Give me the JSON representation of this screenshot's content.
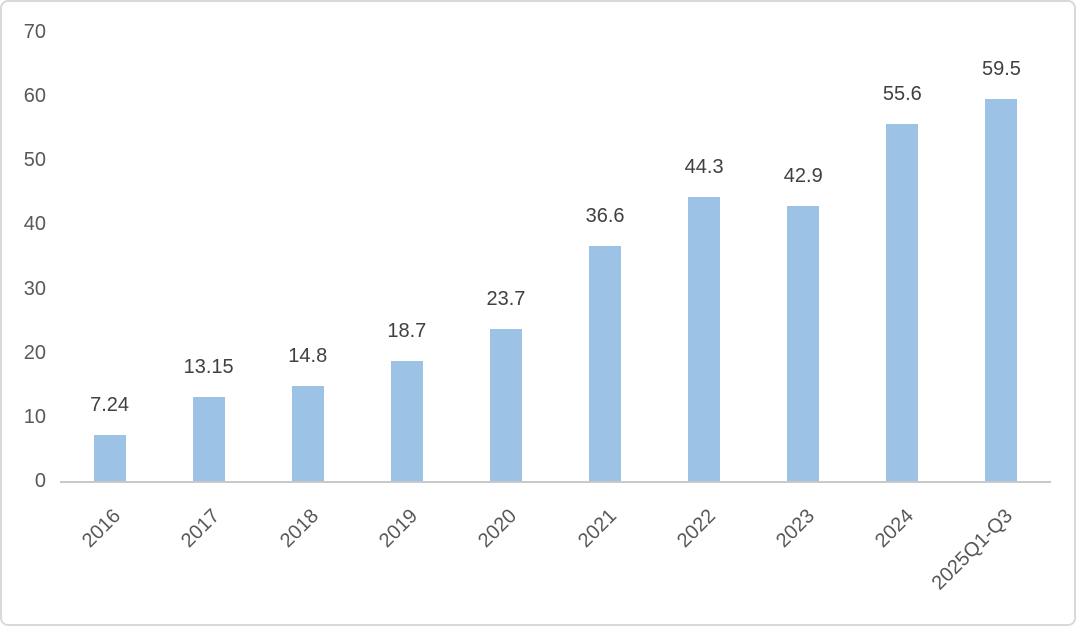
{
  "chart_data": {
    "type": "bar",
    "title": "",
    "xlabel": "",
    "ylabel": "",
    "categories": [
      "2016",
      "2017",
      "2018",
      "2019",
      "2020",
      "2021",
      "2022",
      "2023",
      "2024",
      "2025Q1-Q3"
    ],
    "values": [
      7.24,
      13.15,
      14.8,
      18.7,
      23.7,
      36.6,
      44.3,
      42.9,
      55.6,
      59.5
    ],
    "data_labels": [
      "7.24",
      "13.15",
      "14.8",
      "18.7",
      "23.7",
      "36.6",
      "44.3",
      "42.9",
      "55.6",
      "59.5"
    ],
    "ylim": [
      0,
      70
    ],
    "yticks": [
      0,
      10,
      20,
      30,
      40,
      50,
      60,
      70
    ],
    "grid": false,
    "legend": "none",
    "bar_color": "#9cc3e5",
    "axis_line_color": "#c9c9c9",
    "tick_label_color": "#595959",
    "data_label_color": "#404040",
    "border_color": "#d9d9d9",
    "background_color": "#ffffff"
  }
}
